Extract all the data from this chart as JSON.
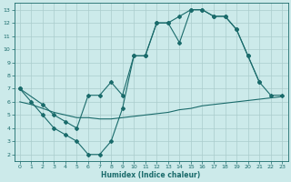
{
  "xlabel": "Humidex (Indice chaleur)",
  "bg_color": "#cceaea",
  "grid_color": "#aacccc",
  "line_color": "#1a6b6b",
  "xlim": [
    -0.5,
    23.5
  ],
  "ylim": [
    1.5,
    13.5
  ],
  "yticks": [
    2,
    3,
    4,
    5,
    6,
    7,
    8,
    9,
    10,
    11,
    12,
    13
  ],
  "xticks": [
    0,
    1,
    2,
    3,
    4,
    5,
    6,
    7,
    8,
    9,
    10,
    11,
    12,
    13,
    14,
    15,
    16,
    17,
    18,
    19,
    20,
    21,
    22,
    23
  ],
  "line1_x": [
    0,
    1,
    2,
    3,
    4,
    5,
    6,
    7,
    8,
    9,
    10,
    11,
    12,
    13,
    14,
    15,
    16,
    17,
    18,
    19,
    20,
    21
  ],
  "line1_y": [
    7.0,
    6.0,
    5.0,
    4.0,
    3.5,
    3.0,
    2.0,
    2.0,
    3.0,
    5.5,
    9.5,
    9.5,
    12.0,
    12.0,
    10.5,
    13.0,
    13.0,
    12.5,
    12.5,
    11.5,
    9.5,
    7.5
  ],
  "line2_x": [
    0,
    1,
    2,
    3,
    4,
    5,
    6,
    7,
    8,
    9,
    10,
    11,
    12,
    13,
    14,
    15,
    16,
    17,
    18,
    19,
    20,
    21,
    22,
    23
  ],
  "line2_y": [
    6.0,
    5.8,
    5.5,
    5.2,
    5.0,
    4.8,
    4.8,
    4.7,
    4.7,
    4.8,
    4.9,
    5.0,
    5.1,
    5.2,
    5.4,
    5.5,
    5.7,
    5.8,
    5.9,
    6.0,
    6.1,
    6.2,
    6.3,
    6.4
  ],
  "line3_x": [
    0,
    2,
    3,
    4,
    5,
    6,
    7,
    8,
    9,
    10,
    11,
    12,
    13,
    14,
    15,
    16,
    17,
    18,
    19,
    20,
    21,
    22,
    23
  ],
  "line3_y": [
    7.0,
    5.8,
    5.0,
    4.5,
    4.0,
    6.5,
    6.5,
    7.5,
    6.5,
    9.5,
    9.5,
    12.0,
    12.0,
    12.5,
    13.0,
    13.0,
    12.5,
    12.5,
    11.5,
    9.5,
    7.5,
    6.5,
    6.5
  ]
}
